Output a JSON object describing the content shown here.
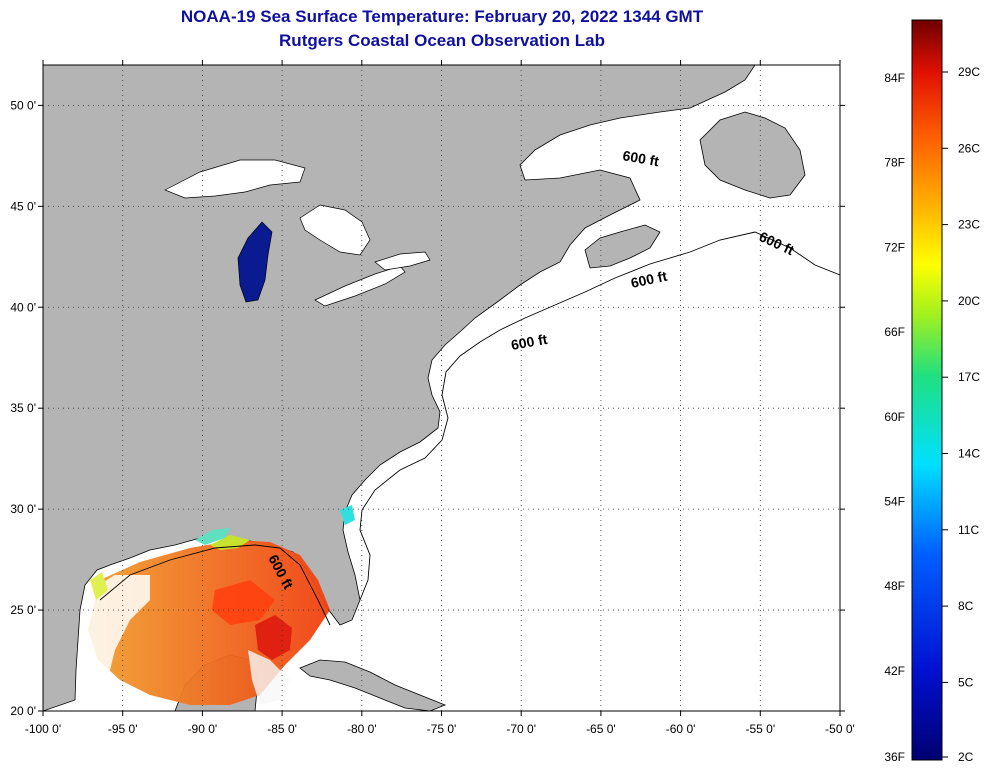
{
  "header": {
    "title": "NOAA-19 Sea Surface Temperature:  February 20, 2022 1344 GMT",
    "subtitle": "Rutgers Coastal Ocean Observation Lab"
  },
  "map": {
    "lon_range": [
      -100,
      -50
    ],
    "lat_range": [
      20,
      52
    ],
    "lon_ticks": [
      "-100 0'",
      "-95 0'",
      "-90 0'",
      "-85 0'",
      "-80 0'",
      "-75 0'",
      "-70 0'",
      "-65 0'",
      "-60 0'",
      "-55 0'",
      "-50 0'"
    ],
    "lat_ticks": [
      {
        "lat": 20,
        "label": "20 0'"
      },
      {
        "lat": 25,
        "label": "25 0'"
      },
      {
        "lat": 30,
        "label": "30 0'"
      },
      {
        "lat": 35,
        "label": "35 0'"
      },
      {
        "lat": 40,
        "label": "40 0'"
      },
      {
        "lat": 45,
        "label": "45 0'"
      },
      {
        "lat": 50,
        "label": "50 0'"
      }
    ],
    "depth_label": "600 ft",
    "colors": {
      "land": "#b4b4b4",
      "water": "#ffffff",
      "lake_michigan": "#0a1a90"
    }
  },
  "colorbar": {
    "fahrenheit": [
      "84F",
      "78F",
      "72F",
      "66F",
      "60F",
      "54F",
      "48F",
      "42F",
      "36F"
    ],
    "celsius": [
      "29C",
      "26C",
      "23C",
      "20C",
      "17C",
      "14C",
      "11C",
      "8C",
      "5C",
      "2C"
    ]
  }
}
